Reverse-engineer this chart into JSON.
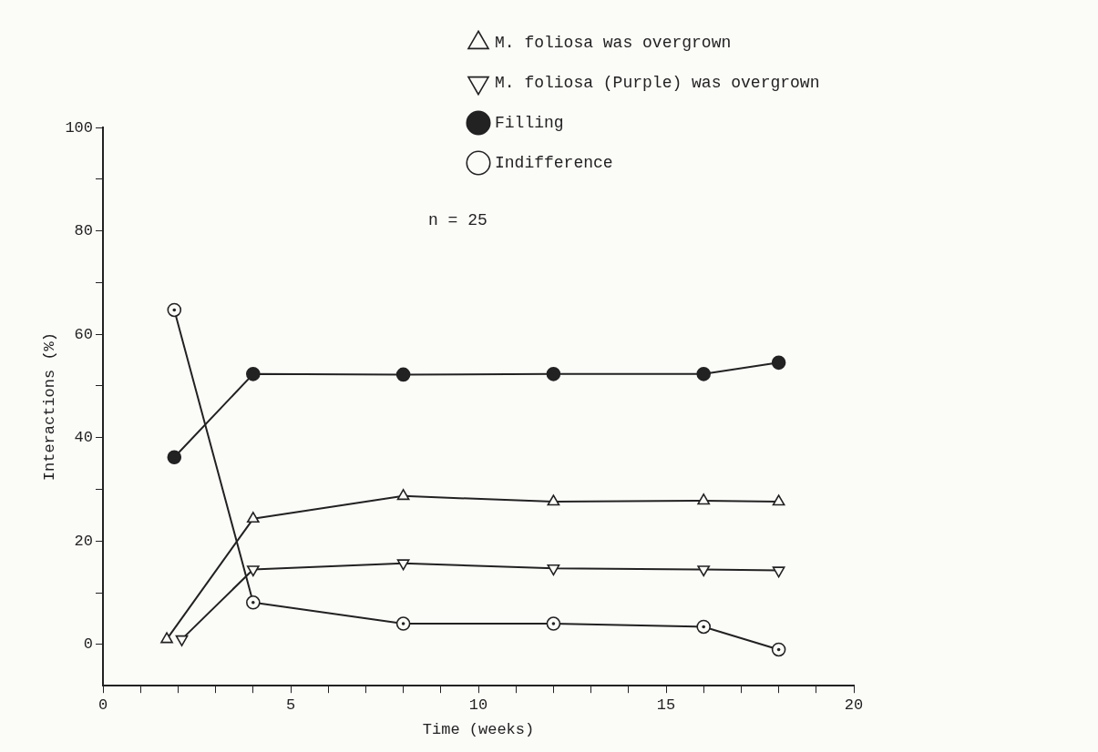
{
  "chart_data": {
    "type": "line",
    "xlabel": "Time (weeks)",
    "ylabel": "Interactions (%)",
    "xlim": [
      0,
      20
    ],
    "xticks": [
      0,
      {
        "value": 1,
        "label": null
      },
      {
        "value": 2,
        "label": null
      },
      {
        "value": 3,
        "label": null
      },
      {
        "value": 4,
        "label": null
      },
      5,
      {
        "value": 6,
        "label": null
      },
      {
        "value": 7,
        "label": null
      },
      {
        "value": 8,
        "label": null
      },
      {
        "value": 9,
        "label": null
      },
      10,
      {
        "value": 11,
        "label": null
      },
      {
        "value": 12,
        "label": null
      },
      {
        "value": 13,
        "label": null
      },
      {
        "value": 14,
        "label": null
      },
      15,
      {
        "value": 16,
        "label": null
      },
      {
        "value": 17,
        "label": null
      },
      {
        "value": 18,
        "label": null
      },
      {
        "value": 19,
        "label": null
      },
      20
    ],
    "ylim": [
      -8,
      100
    ],
    "yticks": [
      0,
      {
        "value": 10,
        "label": null
      },
      20,
      {
        "value": 30,
        "label": null
      },
      40,
      {
        "value": 50,
        "label": null
      },
      60,
      {
        "value": 70,
        "label": null
      },
      80,
      {
        "value": 90,
        "label": null
      },
      100
    ],
    "grid": false,
    "legend": "top right",
    "line_style": "solid",
    "annotations": [
      "n = 25"
    ],
    "series": [
      {
        "name": "M. foliosa was overgrown",
        "color": "#222222",
        "marker": "triangle",
        "x": [
          1.7,
          4,
          8,
          12,
          16,
          18
        ],
        "values": [
          1,
          24.3,
          28.7,
          27.6,
          27.8,
          27.6
        ]
      },
      {
        "name": "M. foliosa (Purple) was overgrown",
        "color": "#222222",
        "marker": "triangle-down",
        "x": [
          2.1,
          4,
          8,
          12,
          16,
          18
        ],
        "values": [
          1,
          14.5,
          15.7,
          14.7,
          14.5,
          14.3
        ]
      },
      {
        "name": "Filling",
        "color": "#222222",
        "marker": "circle",
        "x": [
          1.9,
          4,
          8,
          12,
          16,
          18
        ],
        "values": [
          36.2,
          52.3,
          52.2,
          52.3,
          52.3,
          54.5
        ]
      },
      {
        "name": "Indifference",
        "color": "#222222",
        "marker": "circle-open",
        "x": [
          1.9,
          4,
          8,
          12,
          16,
          18
        ],
        "values": [
          64.7,
          8.1,
          4,
          4,
          3.4,
          -1
        ]
      }
    ]
  }
}
